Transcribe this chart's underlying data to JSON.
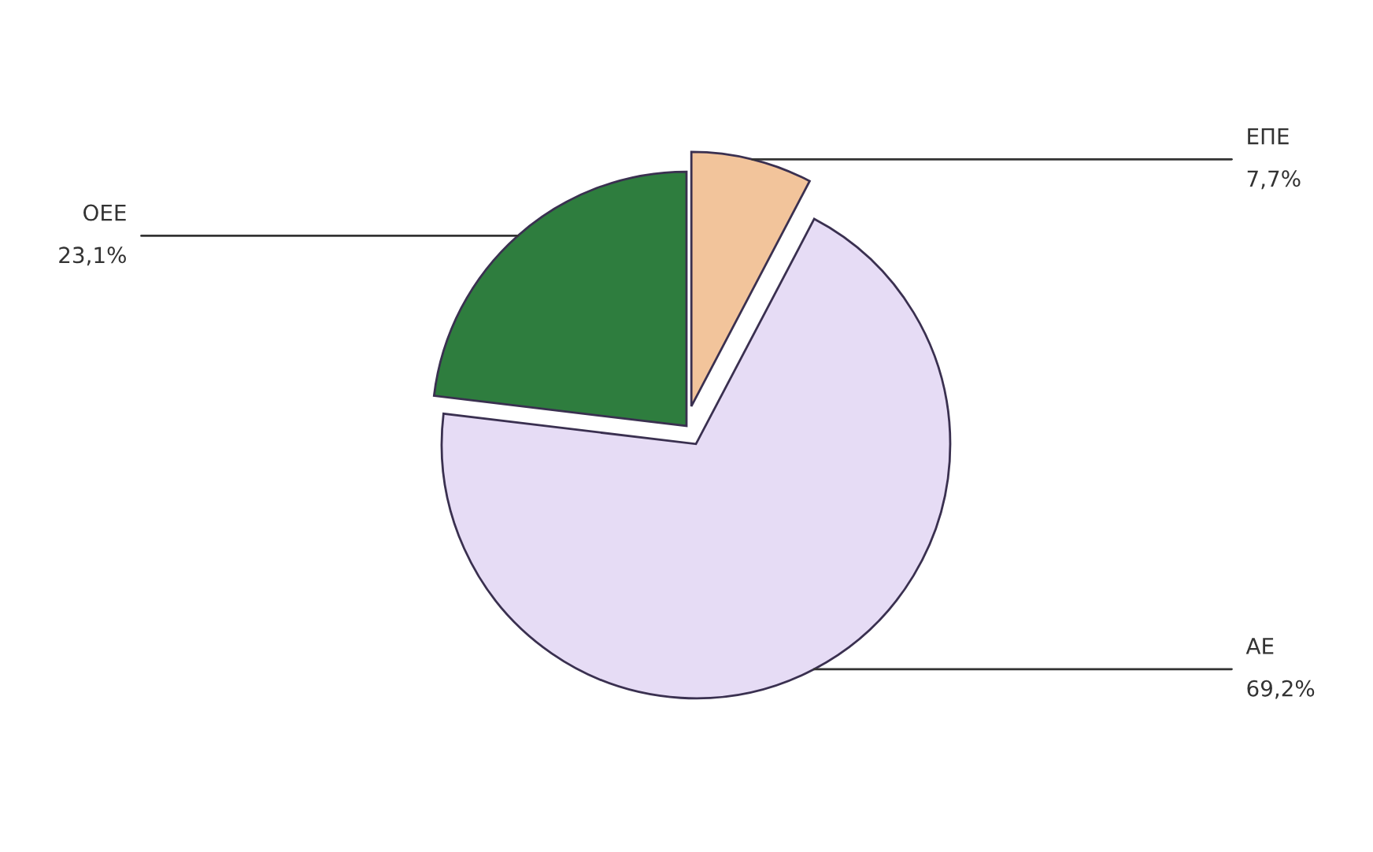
{
  "chart_data": {
    "type": "pie",
    "categories": [
      "ΕΠΕ",
      "ΑΕ",
      "ΟΕΕ"
    ],
    "values": [
      7.7,
      69.2,
      23.1
    ],
    "value_labels": [
      "7,7%",
      "69,2%",
      "23,1%"
    ],
    "colors": [
      "#f2c49b",
      "#e6dcf5",
      "#2e7d3e"
    ]
  }
}
